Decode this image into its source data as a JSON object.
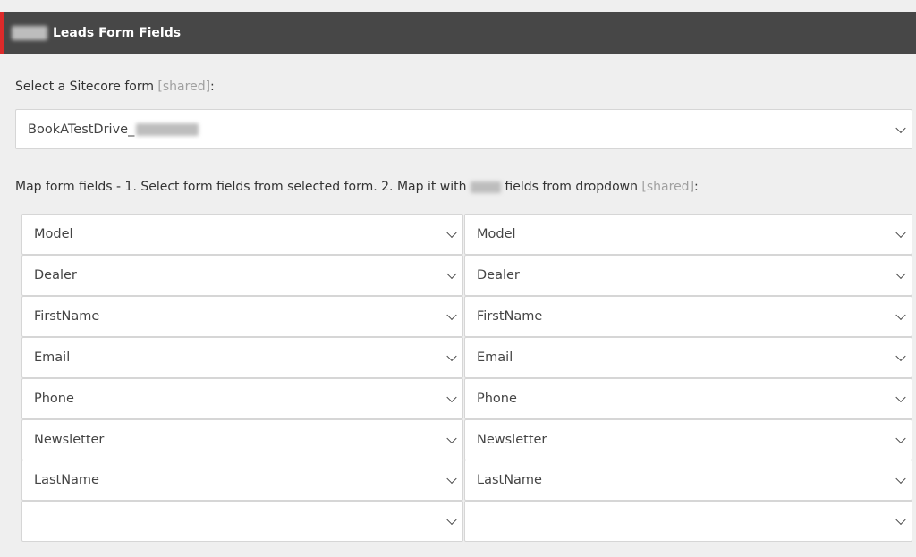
{
  "header": {
    "title": "Leads Form Fields"
  },
  "form_select": {
    "label": "Select a Sitecore form",
    "shared": "[shared]",
    "colon": ":",
    "value": "BookATestDrive_"
  },
  "mapping": {
    "label_a": "Map form fields - 1. Select form fields from selected form. 2. Map it with",
    "label_b": "fields from dropdown",
    "shared": "[shared]",
    "colon": ":",
    "rows": [
      {
        "left": "Model",
        "right": "Model"
      },
      {
        "left": "Dealer",
        "right": "Dealer"
      },
      {
        "left": "FirstName",
        "right": "FirstName"
      },
      {
        "left": "Email",
        "right": "Email"
      },
      {
        "left": "Phone",
        "right": "Phone"
      },
      {
        "left": "Newsletter",
        "right": "Newsletter"
      },
      {
        "left": "LastName",
        "right": "LastName"
      },
      {
        "left": "",
        "right": ""
      }
    ]
  }
}
